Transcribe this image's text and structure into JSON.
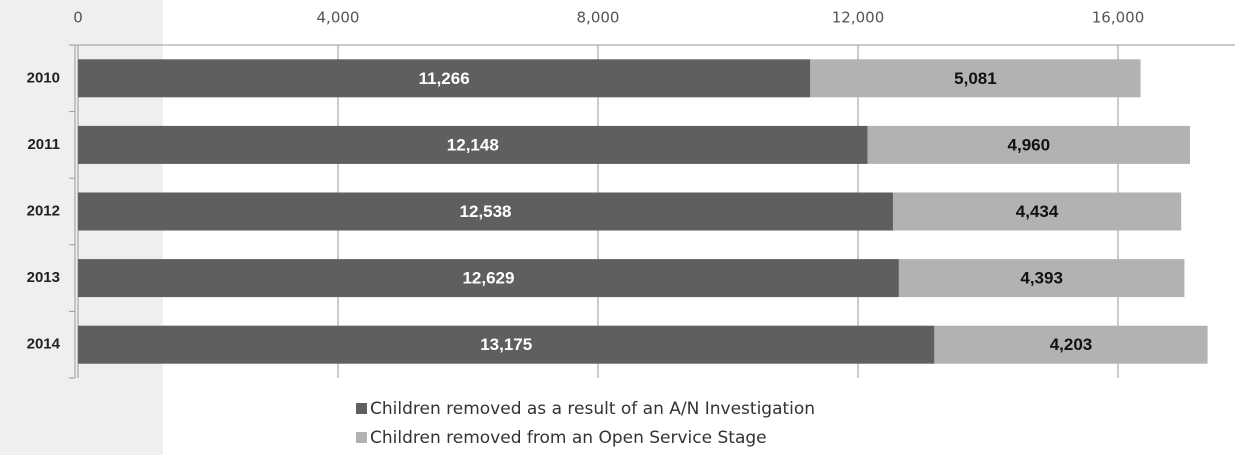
{
  "chart_data": {
    "type": "bar",
    "orientation": "horizontal",
    "stacked": true,
    "categories": [
      "2010",
      "2011",
      "2012",
      "2013",
      "2014"
    ],
    "series": [
      {
        "name": "Children removed as a result of an A/N Investigation",
        "color": "#5f5f5f",
        "values": [
          11266,
          12148,
          12538,
          12629,
          13175
        ],
        "value_labels": [
          "11,266",
          "12,148",
          "12,538",
          "12,629",
          "13,175"
        ]
      },
      {
        "name": "Children removed from an Open Service Stage",
        "color": "#b2b2b2",
        "values": [
          5081,
          4960,
          4434,
          4393,
          4203
        ],
        "value_labels": [
          "5,081",
          "4,960",
          "4,434",
          "4,393",
          "4,203"
        ]
      }
    ],
    "xlim": [
      0,
      17800
    ],
    "xticks": [
      0,
      {
        "value": 4000,
        "label": "4,000"
      },
      {
        "value": 8000,
        "label": "8,000"
      },
      {
        "value": 12000,
        "label": "12,000"
      },
      {
        "value": 16000,
        "label": "16,000"
      }
    ],
    "grid": true,
    "legend": "bottom"
  }
}
